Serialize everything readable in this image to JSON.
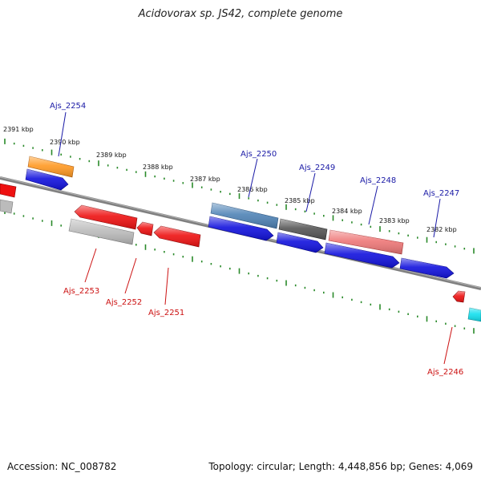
{
  "title": "Acidovorax sp. JS42, complete genome",
  "footer": {
    "accession": "Accession: NC_008782",
    "topology": "Topology: circular; Length: 4,448,856 bp; Genes: 4,069"
  },
  "ruler_labels": [
    "2391 kbp",
    "2390 kbp",
    "2389 kbp",
    "2388 kbp",
    "2387 kbp",
    "2386 kbp",
    "2385 kbp",
    "2384 kbp",
    "2383 kbp",
    "2382 kbp"
  ],
  "colors": {
    "backbone": "#808080",
    "ticks": "#2a8a2a",
    "forward_label": "#1a1aa6",
    "reverse_label": "#cc1111",
    "orange": "#ff9922",
    "blue": "#1111dd",
    "steel": "#4f83b6",
    "dark_gray": "#555555",
    "salmon": "#ee7777",
    "red": "#ee1111",
    "light_gray": "#bbbbbb",
    "cyan": "#11e0ee"
  },
  "gene_labels": {
    "forward": [
      "Ajs_2254",
      "Ajs_2250",
      "Ajs_2249",
      "Ajs_2248",
      "Ajs_2247"
    ],
    "reverse": [
      "Ajs_2253",
      "Ajs_2252",
      "Ajs_2251",
      "Ajs_2246"
    ]
  }
}
